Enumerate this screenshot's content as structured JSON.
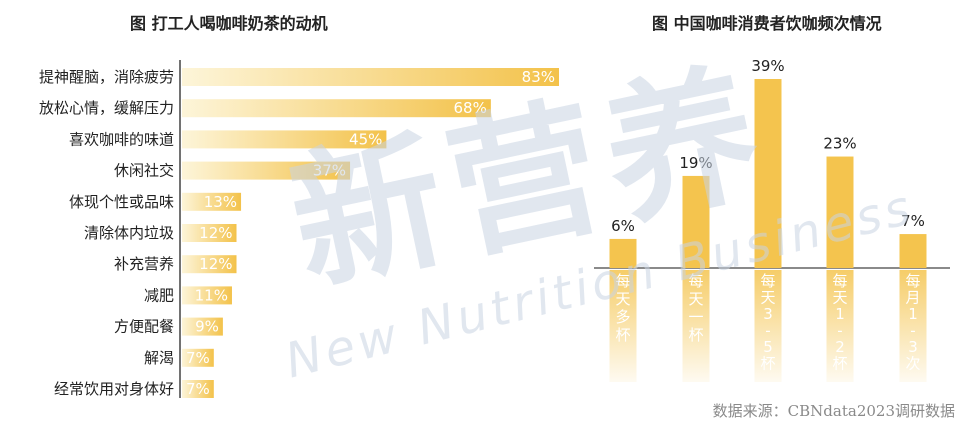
{
  "watermark": {
    "cn": "新营养",
    "en": "New Nutrition Business"
  },
  "source": "数据来源：CBNdata2023调研数据",
  "chart_data": [
    {
      "type": "bar",
      "orientation": "horizontal",
      "title": "图 打工人喝咖啡奶茶的动机",
      "categories": [
        "提神醒脑，消除疲劳",
        "放松心情，缓解压力",
        "喜欢咖啡的味道",
        "休闲社交",
        "体现个性或品味",
        "清除体内垃圾",
        "补充营养",
        "减肥",
        "方便配餐",
        "解渴",
        "经常饮用对身体好"
      ],
      "values": [
        83,
        68,
        45,
        37,
        13,
        12,
        12,
        11,
        9,
        7,
        7
      ],
      "labels": [
        "83%",
        "68%",
        "45%",
        "37%",
        "13%",
        "12%",
        "12%",
        "11%",
        "9%",
        "7%",
        "7%"
      ],
      "xlim": [
        0,
        100
      ],
      "gradient": [
        "#fdf5d9",
        "#f3c24a"
      ]
    },
    {
      "type": "bar",
      "title": "图 中国咖啡消费者饮咖频次情况",
      "categories": [
        "每天多杯",
        "每天一杯",
        "每天3-5杯",
        "每天1-2杯",
        "每月1-3次"
      ],
      "category_glyphs": [
        [
          "每",
          "天",
          "多",
          "杯"
        ],
        [
          "每",
          "天",
          "一",
          "杯"
        ],
        [
          "每",
          "天",
          "3",
          "-",
          "5",
          "杯"
        ],
        [
          "每",
          "天",
          "1",
          "-",
          "2",
          "杯"
        ],
        [
          "每",
          "月",
          "1",
          "-",
          "3",
          "次"
        ]
      ],
      "values": [
        6,
        19,
        39,
        23,
        7
      ],
      "labels": [
        "6%",
        "19%",
        "39%",
        "23%",
        "7%"
      ],
      "ylim": [
        0,
        40
      ],
      "bar_color": "#f4c44e"
    }
  ]
}
